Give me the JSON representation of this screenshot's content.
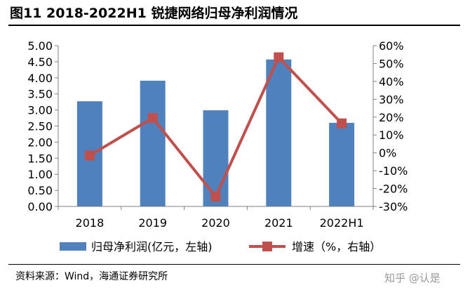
{
  "title": "图11 2018-2022H1 锐捷网络归母净利润情况",
  "source": "资料来源：Wind，海通证券研究所",
  "watermark": "知乎 @认是",
  "chart_data": {
    "type": "bar-line",
    "categories": [
      "2018",
      "2019",
      "2020",
      "2021",
      "2022H1"
    ],
    "series": [
      {
        "name": "归母净利润(亿元，左轴)",
        "type": "bar",
        "axis": "left",
        "values": [
          3.27,
          3.91,
          2.99,
          4.57,
          2.6
        ],
        "color": "#4f81bd"
      },
      {
        "name": "增速（%，右轴）",
        "type": "line",
        "axis": "right",
        "values": [
          -1.5,
          19.5,
          -24.5,
          53.5,
          16.5
        ],
        "color": "#c0504d"
      }
    ],
    "left_axis": {
      "min": 0,
      "max": 5,
      "step": 0.5,
      "ticks": [
        "0.00",
        "0.50",
        "1.00",
        "1.50",
        "2.00",
        "2.50",
        "3.00",
        "3.50",
        "4.00",
        "4.50",
        "5.00"
      ]
    },
    "right_axis": {
      "min": -30,
      "max": 60,
      "step": 10,
      "ticks": [
        "-30%",
        "-20%",
        "-10%",
        "0%",
        "10%",
        "20%",
        "30%",
        "40%",
        "50%",
        "60%"
      ]
    },
    "grid": false,
    "legend_position": "bottom"
  }
}
